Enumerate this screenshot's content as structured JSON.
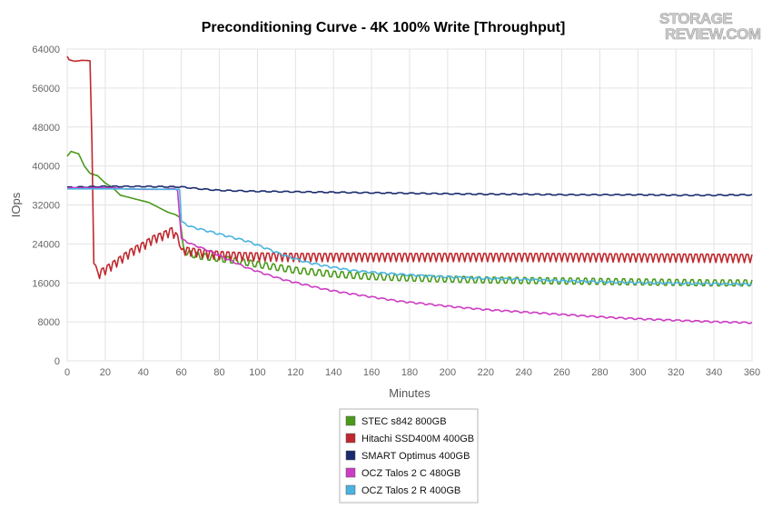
{
  "chart_data": {
    "type": "line",
    "title": "Preconditioning Curve - 4K 100% Write [Throughput]",
    "xlabel": "Minutes",
    "ylabel": "IOps",
    "xlim": [
      0,
      360
    ],
    "ylim": [
      0,
      64000
    ],
    "x_ticks": [
      0,
      20,
      40,
      60,
      80,
      100,
      120,
      140,
      160,
      180,
      200,
      220,
      240,
      260,
      280,
      300,
      320,
      340,
      360
    ],
    "y_ticks": [
      0,
      8000,
      16000,
      24000,
      32000,
      40000,
      48000,
      56000,
      64000
    ],
    "x_tick_labels": [
      "0",
      "20",
      "40",
      "60",
      "80",
      "100",
      "120",
      "140",
      "160",
      "180",
      "200",
      "220",
      "240",
      "260",
      "280",
      "300",
      "320",
      "340",
      "360"
    ],
    "y_tick_labels": [
      "0",
      "8000",
      "16000",
      "24000",
      "32000",
      "40000",
      "48000",
      "56000",
      "64000"
    ],
    "grid": true,
    "legend_position": "bottom-center",
    "series": [
      {
        "name": "STEC s842 800GB",
        "color": "#4a9a1a",
        "points": [
          [
            0,
            42000
          ],
          [
            2,
            43000
          ],
          [
            6,
            42500
          ],
          [
            9,
            40000
          ],
          [
            12,
            38500
          ],
          [
            16,
            38000
          ],
          [
            20,
            36500
          ],
          [
            24,
            35500
          ],
          [
            28,
            34000
          ],
          [
            33,
            33500
          ],
          [
            38,
            33000
          ],
          [
            43,
            32500
          ],
          [
            48,
            31500
          ],
          [
            53,
            30500
          ],
          [
            57,
            30000
          ],
          [
            59,
            29500
          ],
          [
            61,
            23000
          ],
          [
            64,
            22000
          ],
          [
            70,
            21500
          ],
          [
            80,
            21000
          ],
          [
            90,
            20500
          ],
          [
            100,
            19800
          ],
          [
            110,
            19200
          ],
          [
            120,
            18600
          ],
          [
            130,
            18200
          ],
          [
            140,
            17800
          ],
          [
            160,
            17300
          ],
          [
            180,
            17000
          ],
          [
            200,
            16800
          ],
          [
            220,
            16600
          ],
          [
            240,
            16500
          ],
          [
            260,
            16400
          ],
          [
            280,
            16300
          ],
          [
            300,
            16200
          ],
          [
            320,
            16100
          ],
          [
            340,
            16000
          ],
          [
            360,
            16000
          ]
        ],
        "oscillation": {
          "start": 60,
          "period": 4,
          "amplitude": 1000
        }
      },
      {
        "name": "Hitachi SSD400M 400GB",
        "color": "#c0282d",
        "points": [
          [
            0,
            62500
          ],
          [
            1,
            61800
          ],
          [
            4,
            61500
          ],
          [
            8,
            61700
          ],
          [
            12,
            61600
          ],
          [
            13,
            45000
          ],
          [
            14,
            20000
          ],
          [
            16,
            17500
          ],
          [
            20,
            18500
          ],
          [
            25,
            19800
          ],
          [
            30,
            21200
          ],
          [
            35,
            22500
          ],
          [
            40,
            23500
          ],
          [
            45,
            24800
          ],
          [
            50,
            25500
          ],
          [
            55,
            26500
          ],
          [
            59,
            24500
          ],
          [
            60,
            22000
          ],
          [
            62,
            22500
          ],
          [
            70,
            22000
          ],
          [
            80,
            21600
          ],
          [
            90,
            21400
          ],
          [
            100,
            21300
          ],
          [
            120,
            21200
          ],
          [
            150,
            21200
          ],
          [
            200,
            21200
          ],
          [
            250,
            21200
          ],
          [
            300,
            21100
          ],
          [
            360,
            21000
          ]
        ],
        "oscillation": {
          "start": 15,
          "period": 3,
          "amplitude": 1400
        }
      },
      {
        "name": "SMART Optimus 400GB",
        "color": "#1a2a6e",
        "points": [
          [
            0,
            35600
          ],
          [
            20,
            35800
          ],
          [
            40,
            35800
          ],
          [
            60,
            35700
          ],
          [
            70,
            35300
          ],
          [
            80,
            35000
          ],
          [
            100,
            34800
          ],
          [
            120,
            34700
          ],
          [
            140,
            34600
          ],
          [
            160,
            34500
          ],
          [
            180,
            34400
          ],
          [
            200,
            34300
          ],
          [
            220,
            34200
          ],
          [
            240,
            34200
          ],
          [
            260,
            34100
          ],
          [
            280,
            34100
          ],
          [
            300,
            34100
          ],
          [
            320,
            34000
          ],
          [
            340,
            34000
          ],
          [
            360,
            34100
          ]
        ],
        "oscillation": {
          "start": 0,
          "period": 6,
          "amplitude": 150
        }
      },
      {
        "name": "OCZ Talos 2 C 480GB",
        "color": "#cc3cc4",
        "points": [
          [
            0,
            35500
          ],
          [
            25,
            35500
          ],
          [
            30,
            35300
          ],
          [
            40,
            35200
          ],
          [
            50,
            35200
          ],
          [
            56,
            35400
          ],
          [
            58,
            35000
          ],
          [
            60,
            25000
          ],
          [
            65,
            24000
          ],
          [
            75,
            22500
          ],
          [
            85,
            20700
          ],
          [
            95,
            19000
          ],
          [
            105,
            17700
          ],
          [
            115,
            16500
          ],
          [
            125,
            15600
          ],
          [
            135,
            14700
          ],
          [
            145,
            14000
          ],
          [
            155,
            13400
          ],
          [
            165,
            12800
          ],
          [
            175,
            12200
          ],
          [
            190,
            11600
          ],
          [
            205,
            11000
          ],
          [
            220,
            10500
          ],
          [
            240,
            10000
          ],
          [
            260,
            9500
          ],
          [
            280,
            9000
          ],
          [
            300,
            8600
          ],
          [
            320,
            8300
          ],
          [
            340,
            8000
          ],
          [
            360,
            7800
          ]
        ],
        "oscillation": {
          "start": 60,
          "period": 5,
          "amplitude": 200
        }
      },
      {
        "name": "OCZ Talos 2 R 400GB",
        "color": "#4ab3e0",
        "points": [
          [
            0,
            35300
          ],
          [
            30,
            35300
          ],
          [
            55,
            35200
          ],
          [
            59,
            35200
          ],
          [
            60,
            28500
          ],
          [
            65,
            27500
          ],
          [
            75,
            26500
          ],
          [
            85,
            25500
          ],
          [
            95,
            24500
          ],
          [
            105,
            23000
          ],
          [
            115,
            21500
          ],
          [
            125,
            20300
          ],
          [
            135,
            19500
          ],
          [
            150,
            18500
          ],
          [
            165,
            18000
          ],
          [
            180,
            17600
          ],
          [
            200,
            17200
          ],
          [
            220,
            16900
          ],
          [
            240,
            16700
          ],
          [
            260,
            16400
          ],
          [
            280,
            16200
          ],
          [
            300,
            16000
          ],
          [
            320,
            15900
          ],
          [
            340,
            15800
          ],
          [
            360,
            15700
          ]
        ],
        "oscillation": {
          "start": 60,
          "period": 5,
          "amplitude": 250
        }
      }
    ]
  },
  "logo": {
    "line1": "STORAGE",
    "line2": "REVIEW.COM"
  }
}
